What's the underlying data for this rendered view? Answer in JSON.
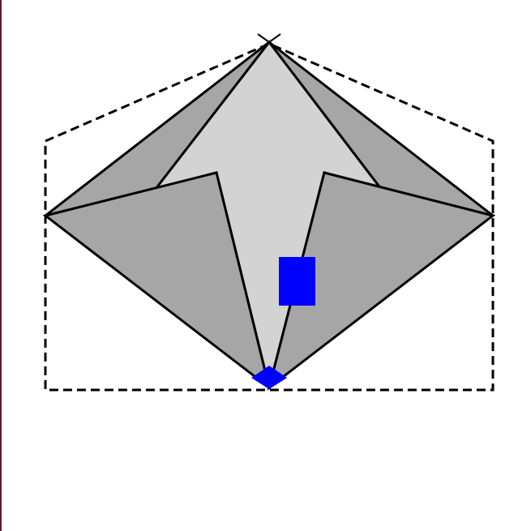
{
  "diagram": {
    "kind": "origami-fold-diagram",
    "colors": {
      "background": "#ffffff",
      "paper_front": "#d3d3d3",
      "paper_back": "#a6a6a6",
      "stroke": "#000000",
      "marker": "#0000ff",
      "frame": "#5a2030"
    },
    "markers": [
      {
        "name": "blue-square",
        "shape": "rectangle"
      },
      {
        "name": "blue-diamond",
        "shape": "diamond"
      }
    ],
    "reference_outline": "dashed",
    "top_point_mark": "x-cross"
  }
}
